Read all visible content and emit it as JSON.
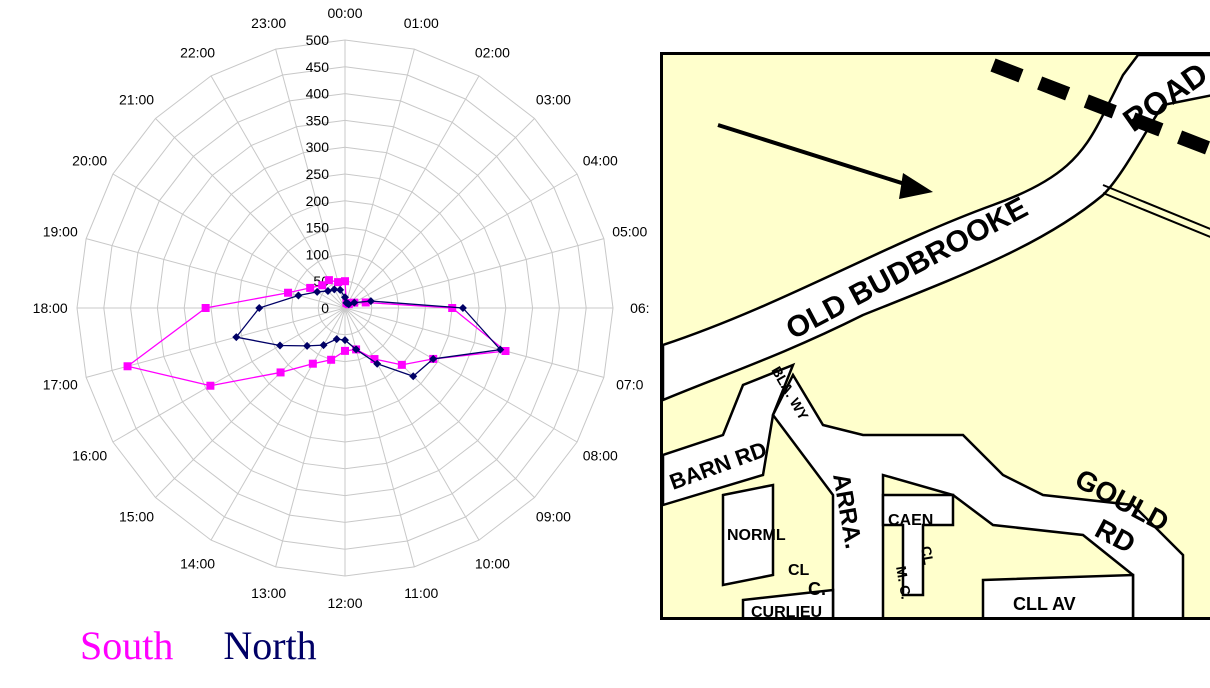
{
  "chart_data": {
    "type": "radar",
    "categories": [
      "00:00",
      "01:00",
      "02:00",
      "03:00",
      "04:00",
      "05:00",
      "06:00",
      "07:00",
      "08:00",
      "09:00",
      "10:00",
      "11:00",
      "12:00",
      "13:00",
      "14:00",
      "15:00",
      "16:00",
      "17:00",
      "18:00",
      "19:00",
      "20:00",
      "21:00",
      "22:00",
      "23:00"
    ],
    "category_labels": [
      "00:00",
      "01:00",
      "02:00",
      "03:00",
      "04:00",
      "05:00",
      "06:",
      "07:0",
      "08:00",
      "09:00",
      "10:00",
      "11:00",
      "12:00",
      "13:00",
      "14:00",
      "15:00",
      "16:00",
      "17:00",
      "18:00",
      "19:00",
      "20:00",
      "21:00",
      "22:00",
      "23:00"
    ],
    "radial_ticks": [
      "0",
      "50",
      "100",
      "150",
      "200",
      "250",
      "300",
      "350",
      "400",
      "450",
      "500"
    ],
    "rlim": [
      0,
      500
    ],
    "grid": true,
    "legend": "bottom",
    "series": [
      {
        "name": "South",
        "color": "#ff00ff",
        "values": [
          50,
          10,
          10,
          10,
          20,
          40,
          200,
          310,
          190,
          150,
          110,
          80,
          80,
          100,
          120,
          170,
          290,
          420,
          260,
          110,
          75,
          60,
          60,
          50
        ]
      },
      {
        "name": "North",
        "color": "#000066",
        "values": [
          20,
          10,
          10,
          10,
          20,
          50,
          220,
          300,
          190,
          180,
          120,
          80,
          60,
          60,
          80,
          100,
          140,
          210,
          160,
          90,
          60,
          45,
          40,
          35
        ]
      }
    ]
  },
  "legend": {
    "south": "South",
    "north": "North"
  },
  "map": {
    "labels": {
      "road": "ROAD",
      "old_budbrooke": "OLD BUDBROOKE",
      "barn_rd": "BARN RD",
      "bla_wy": "BLA. WY",
      "arra": "ARRA.",
      "c": "C.",
      "gould": "GOULD",
      "rd": "RD",
      "norml": "NORML",
      "cl": "CL",
      "caen": "CAEN",
      "cl2": "CL",
      "m_c": "M. C.",
      "curlieu": "CURLIEU",
      "cll_av": "CLL AV"
    }
  }
}
